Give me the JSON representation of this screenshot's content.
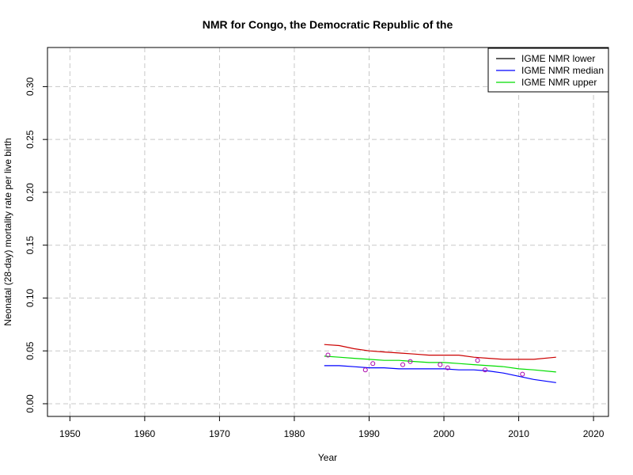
{
  "chart_data": {
    "type": "line",
    "title": "NMR for Congo, the Democratic Republic of the",
    "xlabel": "Year",
    "ylabel": "Neonatal (28-day) mortality rate per live birth",
    "xlim": [
      1947,
      2022
    ],
    "ylim": [
      -0.012,
      0.337
    ],
    "xticks": [
      1950,
      1960,
      1970,
      1980,
      1990,
      2000,
      2010,
      2020
    ],
    "xtick_labels": [
      "1950",
      "1960",
      "1970",
      "1980",
      "1990",
      "2000",
      "2010",
      "2020"
    ],
    "yticks": [
      0.0,
      0.05,
      0.1,
      0.15,
      0.2,
      0.25,
      0.3
    ],
    "ytick_labels": [
      "0.00",
      "0.05",
      "0.10",
      "0.15",
      "0.20",
      "0.25",
      "0.30"
    ],
    "grid": true,
    "legend_position": "top-right",
    "legend": [
      {
        "label": "IGME NMR lower",
        "color": "#000000"
      },
      {
        "label": "IGME NMR median",
        "color": "#0000ff"
      },
      {
        "label": "IGME NMR upper",
        "color": "#00dd00"
      }
    ],
    "series": [
      {
        "color": "#cc0000",
        "x": [
          1984,
          1986,
          1988,
          1990,
          1992,
          1994,
          1996,
          1998,
          2000,
          2002,
          2004,
          2006,
          2008,
          2010,
          2012,
          2015
        ],
        "y": [
          0.056,
          0.055,
          0.052,
          0.05,
          0.049,
          0.048,
          0.047,
          0.046,
          0.046,
          0.046,
          0.044,
          0.043,
          0.042,
          0.042,
          0.042,
          0.044
        ]
      },
      {
        "color": "#00dd00",
        "x": [
          1984,
          1986,
          1988,
          1990,
          1992,
          1994,
          1996,
          1998,
          2000,
          2002,
          2004,
          2006,
          2008,
          2010,
          2012,
          2015
        ],
        "y": [
          0.045,
          0.044,
          0.043,
          0.042,
          0.041,
          0.041,
          0.04,
          0.039,
          0.039,
          0.038,
          0.037,
          0.036,
          0.035,
          0.033,
          0.032,
          0.03
        ]
      },
      {
        "color": "#0000ff",
        "x": [
          1984,
          1986,
          1988,
          1990,
          1992,
          1994,
          1996,
          1998,
          2000,
          2002,
          2004,
          2006,
          2008,
          2010,
          2012,
          2015
        ],
        "y": [
          0.036,
          0.036,
          0.035,
          0.034,
          0.034,
          0.033,
          0.033,
          0.033,
          0.033,
          0.032,
          0.032,
          0.031,
          0.029,
          0.026,
          0.023,
          0.02
        ]
      }
    ],
    "points": {
      "color": "#aa00aa",
      "x": [
        1984.5,
        1989.5,
        1990.5,
        1994.5,
        1995.5,
        1999.5,
        2000.5,
        2004.5,
        2005.5,
        2010.5
      ],
      "y": [
        0.046,
        0.032,
        0.038,
        0.037,
        0.04,
        0.037,
        0.034,
        0.041,
        0.032,
        0.028
      ]
    }
  }
}
